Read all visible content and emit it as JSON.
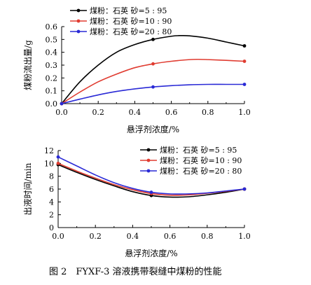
{
  "figure": {
    "caption": "图 2　FYXF-3 溶液携带裂缝中煤粉的性能"
  },
  "chart_data": [
    {
      "type": "line",
      "title": "",
      "xlabel": "悬浮剂浓度/%",
      "ylabel": "煤粉流出量/g",
      "xlim": [
        0,
        1.0
      ],
      "ylim": [
        0,
        0.6
      ],
      "xticks": [
        "0.0",
        "0.2",
        "0.4",
        "0.6",
        "0.8",
        "1.0"
      ],
      "yticks": [
        "0.0",
        "0.1",
        "0.2",
        "0.3",
        "0.4",
        "0.5",
        "0.6"
      ],
      "grid": false,
      "legend_position": "top-left",
      "markers_x": [
        0,
        0.5,
        1.0
      ],
      "series": [
        {
          "name": "煤粉：石英 砂=5 : 95",
          "color": "#000000",
          "x": [
            0,
            0.1,
            0.2,
            0.3,
            0.4,
            0.5,
            0.6,
            0.65,
            0.7,
            0.8,
            0.9,
            1.0
          ],
          "y": [
            0.0,
            0.17,
            0.3,
            0.4,
            0.46,
            0.5,
            0.525,
            0.53,
            0.528,
            0.51,
            0.48,
            0.45
          ]
        },
        {
          "name": "煤粉：石英 砂=10 : 90",
          "color": "#e03c31",
          "x": [
            0,
            0.1,
            0.2,
            0.3,
            0.4,
            0.5,
            0.6,
            0.7,
            0.75,
            0.8,
            0.9,
            1.0
          ],
          "y": [
            0.0,
            0.09,
            0.17,
            0.23,
            0.28,
            0.31,
            0.33,
            0.343,
            0.345,
            0.343,
            0.337,
            0.33
          ]
        },
        {
          "name": "煤粉：石英 砂=20 : 80",
          "color": "#2a2ad6",
          "x": [
            0,
            0.1,
            0.2,
            0.3,
            0.4,
            0.5,
            0.6,
            0.7,
            0.8,
            0.9,
            1.0
          ],
          "y": [
            0.0,
            0.035,
            0.068,
            0.095,
            0.115,
            0.13,
            0.14,
            0.147,
            0.15,
            0.15,
            0.15
          ]
        }
      ]
    },
    {
      "type": "line",
      "title": "",
      "xlabel": "悬浮剂浓度/%",
      "ylabel": "出液时间/min",
      "xlim": [
        0,
        1.0
      ],
      "ylim": [
        0,
        12
      ],
      "xticks": [
        "0.0",
        "0.2",
        "0.4",
        "0.6",
        "0.8",
        "1.0"
      ],
      "yticks": [
        "0",
        "2",
        "4",
        "6",
        "8",
        "10",
        "12"
      ],
      "grid": false,
      "legend_position": "top-right",
      "markers_x": [
        0,
        0.5,
        1.0
      ],
      "series": [
        {
          "name": "煤粉：石英 砂=5 : 95",
          "color": "#000000",
          "x": [
            0,
            0.1,
            0.2,
            0.3,
            0.4,
            0.5,
            0.6,
            0.7,
            0.8,
            0.9,
            1.0
          ],
          "y": [
            9.8,
            8.6,
            7.5,
            6.5,
            5.6,
            5.0,
            4.75,
            4.8,
            5.1,
            5.5,
            6.0
          ]
        },
        {
          "name": "煤粉：石英 砂=10 : 90",
          "color": "#e03c31",
          "x": [
            0,
            0.1,
            0.2,
            0.3,
            0.4,
            0.5,
            0.6,
            0.7,
            0.8,
            0.9,
            1.0
          ],
          "y": [
            10.0,
            8.8,
            7.7,
            6.7,
            5.9,
            5.3,
            5.05,
            5.1,
            5.35,
            5.65,
            6.0
          ]
        },
        {
          "name": "煤粉：石英 砂=20 : 80",
          "color": "#2a2ad6",
          "x": [
            0,
            0.1,
            0.2,
            0.3,
            0.4,
            0.5,
            0.6,
            0.7,
            0.8,
            0.9,
            1.0
          ],
          "y": [
            11.0,
            9.6,
            8.2,
            7.0,
            6.1,
            5.5,
            5.25,
            5.25,
            5.4,
            5.7,
            6.0
          ]
        }
      ]
    }
  ]
}
